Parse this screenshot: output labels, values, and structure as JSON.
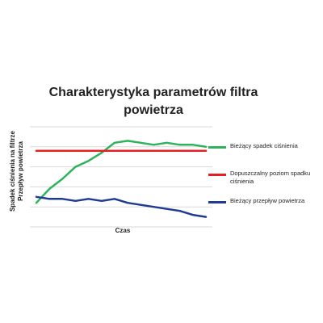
{
  "chart_data": {
    "type": "line",
    "title": "Charakterystyka  parametrów filtra powietrza",
    "xlabel": "Czas",
    "ylabel_lines": [
      "Spadek ciśnienia na filtrze",
      "Przepływ powietrza"
    ],
    "x": [
      1,
      2,
      3,
      4,
      5,
      6,
      7,
      8,
      9,
      10,
      11,
      12,
      13,
      14
    ],
    "ylim": [
      0,
      5
    ],
    "grid": true,
    "legend_position": "right",
    "series": [
      {
        "name": "Bieżący spadek ciśnienia",
        "color": "#2db35a",
        "values": [
          1.2,
          1.9,
          2.4,
          3.0,
          3.3,
          3.7,
          4.2,
          4.3,
          4.2,
          4.1,
          4.2,
          4.1,
          4.1,
          4.0
        ]
      },
      {
        "name": "Dopuszczalny poziom spadku ciśnienia",
        "color": "#e32024",
        "values": [
          3.8,
          3.8,
          3.8,
          3.8,
          3.8,
          3.8,
          3.8,
          3.8,
          3.8,
          3.8,
          3.8,
          3.8,
          3.8,
          3.8
        ]
      },
      {
        "name": "Bieżący przepływ powietrza",
        "color": "#1f3a93",
        "values": [
          1.5,
          1.4,
          1.4,
          1.3,
          1.4,
          1.3,
          1.4,
          1.2,
          1.1,
          1.0,
          0.9,
          0.8,
          0.6,
          0.5
        ]
      }
    ]
  }
}
